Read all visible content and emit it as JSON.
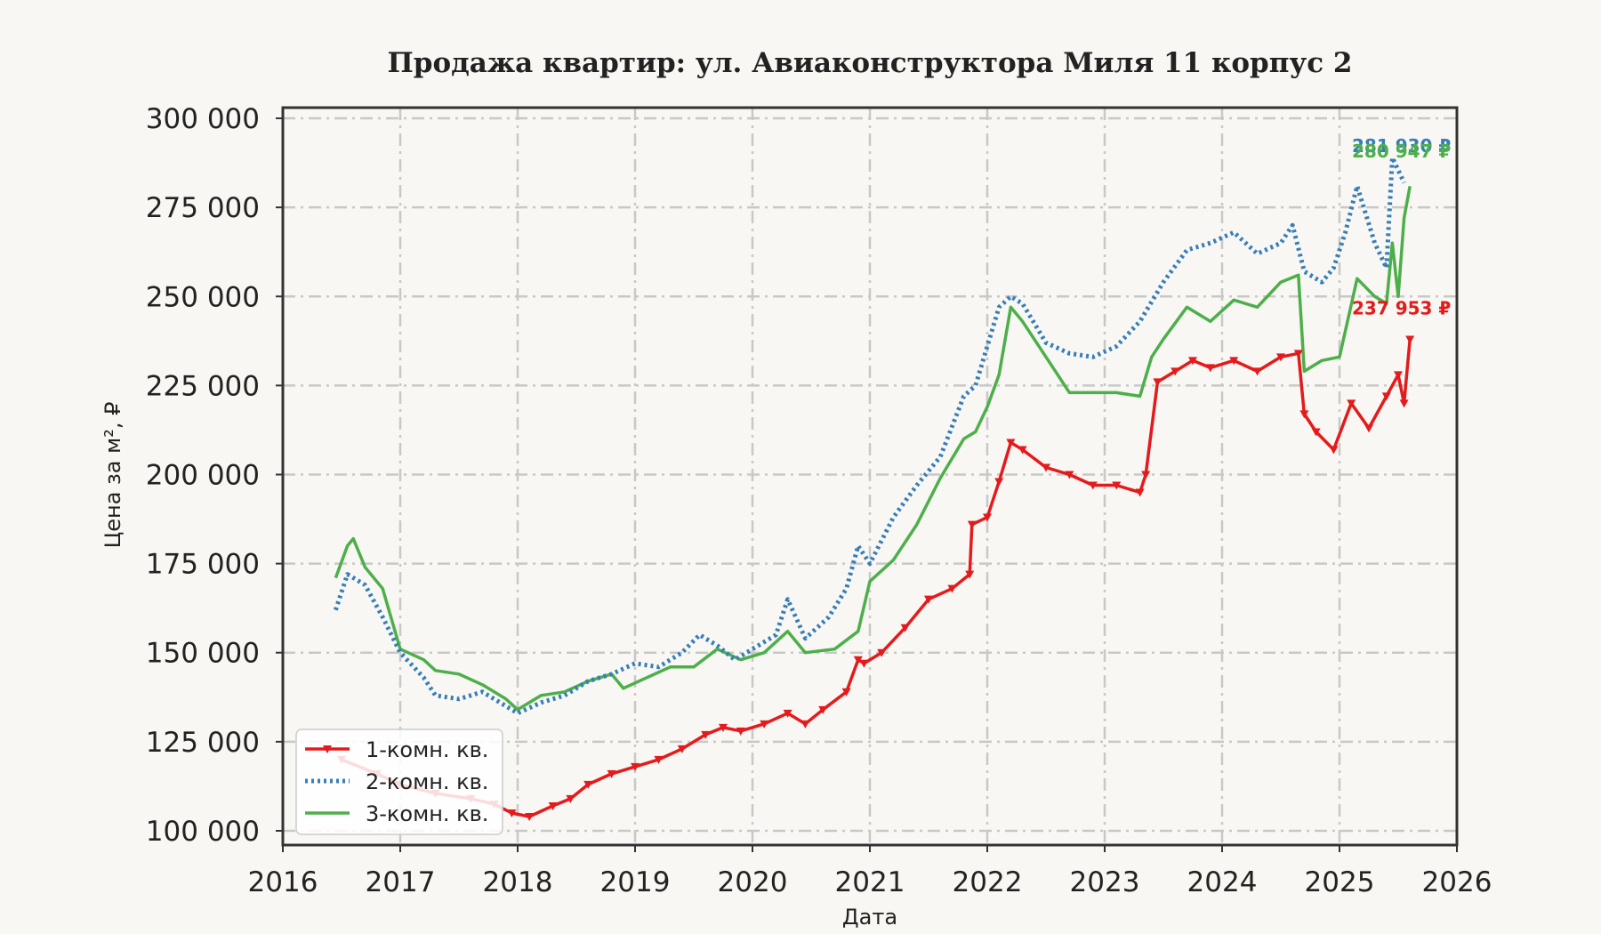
{
  "chart_data": {
    "type": "line",
    "title": "Продажа квартир: ул. Авиаконструктора Миля 11 корпус 2",
    "xlabel": "Дата",
    "ylabel": "Цена за м², ₽",
    "xlim": [
      2016,
      2026
    ],
    "ylim": [
      96000,
      303000
    ],
    "x_ticks": [
      "2016",
      "2017",
      "2018",
      "2019",
      "2020",
      "2021",
      "2022",
      "2023",
      "2024",
      "2025",
      "2026"
    ],
    "y_ticks": [
      100000,
      125000,
      150000,
      175000,
      200000,
      225000,
      250000,
      275000,
      300000
    ],
    "y_tick_labels": [
      "100 000",
      "125 000",
      "150 000",
      "175 000",
      "200 000",
      "225 000",
      "250 000",
      "275 000",
      "300 000"
    ],
    "grid": true,
    "legend_position": "lower-left",
    "series": [
      {
        "name": "1-комн. кв.",
        "color": "#e41a1c",
        "style": "solid-triangle-markers",
        "end_label": "237 953 ₽",
        "x": [
          2016.5,
          2016.8,
          2017.0,
          2017.3,
          2017.6,
          2017.8,
          2017.95,
          2018.1,
          2018.3,
          2018.45,
          2018.6,
          2018.8,
          2019.0,
          2019.2,
          2019.4,
          2019.6,
          2019.75,
          2019.9,
          2020.1,
          2020.3,
          2020.45,
          2020.6,
          2020.8,
          2020.9,
          2020.95,
          2021.1,
          2021.3,
          2021.5,
          2021.7,
          2021.85,
          2021.87,
          2022.0,
          2022.1,
          2022.2,
          2022.3,
          2022.5,
          2022.7,
          2022.9,
          2023.1,
          2023.3,
          2023.35,
          2023.45,
          2023.6,
          2023.75,
          2023.9,
          2024.1,
          2024.3,
          2024.5,
          2024.65,
          2024.7,
          2024.8,
          2024.95,
          2025.1,
          2025.25,
          2025.4,
          2025.5,
          2025.55,
          2025.6
        ],
        "y": [
          120000,
          116000,
          113000,
          110500,
          109000,
          107500,
          105000,
          104000,
          107000,
          109000,
          113000,
          116000,
          118000,
          120000,
          123000,
          127000,
          129000,
          128000,
          130000,
          133000,
          130000,
          134000,
          139000,
          148000,
          147000,
          150000,
          157000,
          165000,
          168000,
          172000,
          186000,
          188000,
          198000,
          209000,
          207000,
          202000,
          200000,
          197000,
          197000,
          195000,
          200000,
          226000,
          229000,
          232000,
          230000,
          232000,
          229000,
          233000,
          234000,
          217000,
          212000,
          207000,
          220000,
          213000,
          222000,
          228000,
          220000,
          237953
        ]
      },
      {
        "name": "2-комн. кв.",
        "color": "#377eb8",
        "style": "dotted",
        "end_label": "281 930 ₽",
        "x": [
          2016.45,
          2016.55,
          2016.7,
          2016.85,
          2017.0,
          2017.2,
          2017.3,
          2017.5,
          2017.7,
          2017.9,
          2018.0,
          2018.2,
          2018.4,
          2018.6,
          2018.8,
          2019.0,
          2019.2,
          2019.4,
          2019.55,
          2019.7,
          2019.85,
          2020.0,
          2020.2,
          2020.3,
          2020.45,
          2020.65,
          2020.8,
          2020.9,
          2021.0,
          2021.2,
          2021.4,
          2021.6,
          2021.8,
          2021.9,
          2022.0,
          2022.1,
          2022.2,
          2022.3,
          2022.5,
          2022.7,
          2022.9,
          2023.1,
          2023.3,
          2023.5,
          2023.7,
          2023.9,
          2024.1,
          2024.3,
          2024.5,
          2024.6,
          2024.7,
          2024.85,
          2024.95,
          2025.05,
          2025.15,
          2025.3,
          2025.4,
          2025.45,
          2025.55
        ],
        "y": [
          162000,
          172000,
          169000,
          160000,
          150000,
          143000,
          138000,
          137000,
          139000,
          135000,
          133000,
          136000,
          138000,
          142000,
          144000,
          147000,
          146000,
          150000,
          155000,
          152000,
          148000,
          151000,
          155000,
          165000,
          154000,
          160000,
          168000,
          180000,
          175000,
          188000,
          197000,
          205000,
          222000,
          225000,
          236000,
          247000,
          250000,
          248000,
          237000,
          234000,
          233000,
          236000,
          243000,
          254000,
          263000,
          265000,
          268000,
          262000,
          265000,
          270000,
          257000,
          254000,
          258000,
          268000,
          281000,
          265000,
          258000,
          289000,
          281930
        ]
      },
      {
        "name": "3-комн. кв.",
        "color": "#4daf4a",
        "style": "solid",
        "end_label": "280 947 ₽",
        "x": [
          2016.45,
          2016.55,
          2016.6,
          2016.7,
          2016.85,
          2017.0,
          2017.2,
          2017.3,
          2017.5,
          2017.7,
          2017.9,
          2018.0,
          2018.2,
          2018.4,
          2018.6,
          2018.8,
          2018.9,
          2019.1,
          2019.3,
          2019.5,
          2019.7,
          2019.9,
          2020.1,
          2020.3,
          2020.45,
          2020.7,
          2020.9,
          2021.0,
          2021.2,
          2021.4,
          2021.6,
          2021.8,
          2021.9,
          2022.0,
          2022.1,
          2022.2,
          2022.3,
          2022.5,
          2022.7,
          2022.9,
          2023.1,
          2023.3,
          2023.4,
          2023.5,
          2023.7,
          2023.9,
          2024.1,
          2024.3,
          2024.5,
          2024.65,
          2024.7,
          2024.85,
          2025.0,
          2025.15,
          2025.3,
          2025.4,
          2025.45,
          2025.5,
          2025.55,
          2025.6
        ],
        "y": [
          171000,
          180000,
          182000,
          174000,
          168000,
          151000,
          148000,
          145000,
          144000,
          141000,
          137000,
          134000,
          138000,
          139000,
          142000,
          144000,
          140000,
          143000,
          146000,
          146000,
          151000,
          148000,
          150000,
          156000,
          150000,
          151000,
          156000,
          170000,
          176000,
          186000,
          199000,
          210000,
          212000,
          219000,
          228000,
          247000,
          243000,
          233000,
          223000,
          223000,
          223000,
          222000,
          233000,
          238000,
          247000,
          243000,
          249000,
          247000,
          254000,
          256000,
          229000,
          232000,
          233000,
          255000,
          250000,
          248000,
          265000,
          250000,
          272000,
          280947
        ]
      }
    ]
  }
}
